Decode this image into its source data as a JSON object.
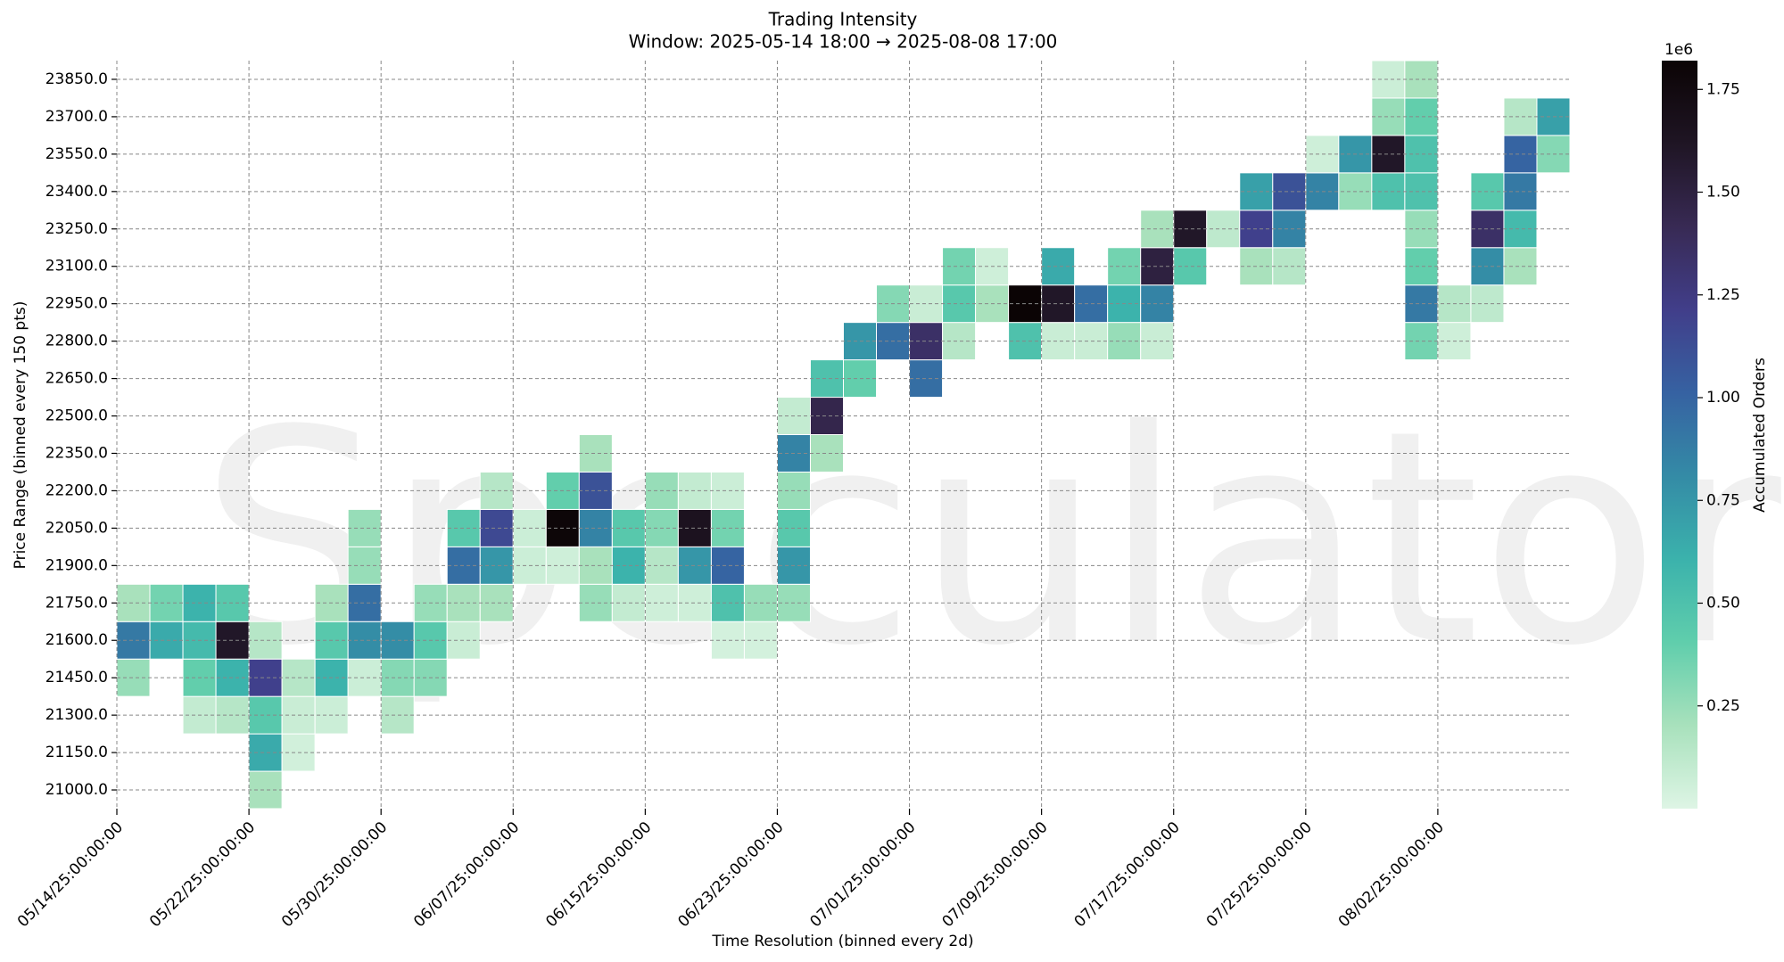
{
  "chart_data": {
    "type": "heatmap",
    "title": "Trading Intensity",
    "subtitle": "Window: 2025-05-14 18:00 → 2025-08-08 17:00",
    "xlabel": "Time Resolution (binned every 2d)",
    "ylabel": "Price Range (binned every 150 pts)",
    "colorbar_label": "Accumulated Orders",
    "colorbar_offset": "1e6",
    "watermark": "Speculator",
    "grid": true,
    "colorscale": [
      "#def5e5",
      "#a8e1bc",
      "#60ceac",
      "#3bb2ac",
      "#348ba6",
      "#3662a2",
      "#413e8a",
      "#382a54",
      "#1f1524",
      "#0b0405"
    ],
    "zlim": [
      0,
      1.82
    ],
    "zticks": [
      0.25,
      {
        "value": 0.5,
        "label": "0.50"
      },
      0.75,
      {
        "value": 1,
        "label": "1.00"
      },
      1.25,
      {
        "value": 1.5,
        "label": "1.50"
      },
      1.75
    ],
    "x": [
      "05/14/25:00:00:00",
      null,
      null,
      null,
      "05/22/25:00:00:00",
      null,
      null,
      null,
      "05/30/25:00:00:00",
      null,
      null,
      null,
      "06/07/25:00:00:00",
      null,
      null,
      null,
      "06/15/25:00:00:00",
      null,
      null,
      null,
      "06/23/25:00:00:00",
      null,
      null,
      null,
      "07/01/25:00:00:00",
      null,
      null,
      null,
      "07/09/25:00:00:00",
      null,
      null,
      null,
      "07/17/25:00:00:00",
      null,
      null,
      null,
      "07/25/25:00:00:00",
      null,
      null,
      null,
      "08/02/25:00:00:00",
      null,
      null,
      null
    ],
    "y": [
      "21000.0",
      "21150.0",
      "21300.0",
      "21450.0",
      "21600.0",
      "21750.0",
      "21900.0",
      "22050.0",
      "22200.0",
      "22350.0",
      "22500.0",
      "22650.0",
      "22800.0",
      "22950.0",
      "23100.0",
      "23250.0",
      "23400.0",
      "23550.0",
      "23700.0",
      "23850.0"
    ],
    "values": [
      [
        null,
        null,
        null,
        null,
        0.2,
        null,
        null,
        null,
        null,
        null,
        null,
        null,
        null,
        null,
        null,
        null,
        null,
        null,
        null,
        null,
        null,
        null,
        null,
        null,
        null,
        null,
        null,
        null,
        null,
        null,
        null,
        null,
        null,
        null,
        null,
        null,
        null,
        null,
        null,
        null,
        null,
        null,
        null,
        null
      ],
      [
        null,
        null,
        null,
        null,
        0.65,
        0.05,
        null,
        null,
        null,
        null,
        null,
        null,
        null,
        null,
        null,
        null,
        null,
        null,
        null,
        null,
        null,
        null,
        null,
        null,
        null,
        null,
        null,
        null,
        null,
        null,
        null,
        null,
        null,
        null,
        null,
        null,
        null,
        null,
        null,
        null,
        null,
        null,
        null,
        null
      ],
      [
        null,
        null,
        0.1,
        0.15,
        0.45,
        0.08,
        0.07,
        null,
        0.15,
        null,
        null,
        null,
        null,
        null,
        null,
        null,
        null,
        null,
        null,
        null,
        null,
        null,
        null,
        null,
        null,
        null,
        null,
        null,
        null,
        null,
        null,
        null,
        null,
        null,
        null,
        null,
        null,
        null,
        null,
        null,
        null,
        null,
        null,
        null
      ],
      [
        0.25,
        null,
        0.4,
        0.6,
        1.2,
        0.15,
        0.6,
        0.07,
        0.3,
        0.3,
        null,
        null,
        null,
        null,
        null,
        null,
        null,
        null,
        null,
        null,
        null,
        null,
        null,
        null,
        null,
        null,
        null,
        null,
        null,
        null,
        null,
        null,
        null,
        null,
        null,
        null,
        null,
        null,
        null,
        null,
        null,
        null,
        null,
        null
      ],
      [
        0.9,
        0.65,
        0.55,
        1.6,
        0.15,
        null,
        0.45,
        0.8,
        0.8,
        0.45,
        0.08,
        null,
        null,
        null,
        null,
        null,
        null,
        null,
        0.04,
        0.04,
        null,
        null,
        null,
        null,
        null,
        null,
        null,
        null,
        null,
        null,
        null,
        null,
        null,
        null,
        null,
        null,
        null,
        null,
        null,
        null,
        null,
        null,
        null,
        null
      ],
      [
        0.2,
        0.35,
        0.6,
        0.45,
        null,
        null,
        0.2,
        0.95,
        null,
        0.25,
        0.2,
        0.2,
        null,
        null,
        0.25,
        0.1,
        0.06,
        0.06,
        0.5,
        0.25,
        0.25,
        null,
        null,
        null,
        null,
        null,
        null,
        null,
        null,
        null,
        null,
        null,
        null,
        null,
        null,
        null,
        null,
        null,
        null,
        null,
        null,
        null,
        null,
        null
      ],
      [
        null,
        null,
        null,
        null,
        null,
        null,
        null,
        0.25,
        null,
        null,
        0.95,
        0.75,
        0.07,
        0.06,
        0.2,
        0.6,
        0.15,
        0.75,
        1.0,
        null,
        0.75,
        null,
        null,
        null,
        null,
        null,
        null,
        null,
        null,
        null,
        null,
        null,
        null,
        null,
        null,
        null,
        null,
        null,
        null,
        null,
        null,
        null,
        null,
        null
      ],
      [
        null,
        null,
        null,
        null,
        null,
        null,
        null,
        0.25,
        null,
        null,
        0.45,
        1.15,
        0.07,
        1.8,
        0.85,
        0.45,
        0.3,
        1.65,
        0.35,
        null,
        0.45,
        null,
        null,
        null,
        null,
        null,
        null,
        null,
        null,
        null,
        null,
        null,
        null,
        null,
        null,
        null,
        null,
        null,
        null,
        null,
        null,
        null,
        null,
        null
      ],
      [
        null,
        null,
        null,
        null,
        null,
        null,
        null,
        null,
        null,
        null,
        null,
        0.15,
        null,
        0.4,
        1.1,
        null,
        0.25,
        0.1,
        0.07,
        null,
        0.25,
        null,
        null,
        null,
        null,
        null,
        null,
        null,
        null,
        null,
        null,
        null,
        null,
        null,
        null,
        null,
        null,
        null,
        null,
        null,
        null,
        null,
        null,
        null
      ],
      [
        null,
        null,
        null,
        null,
        null,
        null,
        null,
        null,
        null,
        null,
        null,
        null,
        null,
        null,
        0.2,
        null,
        null,
        null,
        null,
        null,
        0.85,
        0.2,
        null,
        null,
        null,
        null,
        null,
        null,
        null,
        null,
        null,
        null,
        null,
        null,
        null,
        null,
        null,
        null,
        null,
        null,
        null,
        null,
        null,
        null
      ],
      [
        null,
        null,
        null,
        null,
        null,
        null,
        null,
        null,
        null,
        null,
        null,
        null,
        null,
        null,
        null,
        null,
        null,
        null,
        null,
        null,
        0.1,
        1.45,
        null,
        null,
        null,
        null,
        null,
        null,
        null,
        null,
        null,
        null,
        null,
        null,
        null,
        null,
        null,
        null,
        null,
        null,
        null,
        null,
        null,
        null
      ],
      [
        null,
        null,
        null,
        null,
        null,
        null,
        null,
        null,
        null,
        null,
        null,
        null,
        null,
        null,
        null,
        null,
        null,
        null,
        null,
        null,
        null,
        0.5,
        0.4,
        null,
        0.95,
        null,
        null,
        null,
        null,
        null,
        null,
        null,
        null,
        null,
        null,
        null,
        null,
        null,
        null,
        null,
        null,
        null,
        null,
        null
      ],
      [
        null,
        null,
        null,
        null,
        null,
        null,
        null,
        null,
        null,
        null,
        null,
        null,
        null,
        null,
        null,
        null,
        null,
        null,
        null,
        null,
        null,
        null,
        0.75,
        0.95,
        1.35,
        0.15,
        null,
        0.5,
        0.08,
        0.08,
        0.25,
        0.08,
        null,
        null,
        null,
        null,
        null,
        null,
        null,
        0.35,
        0.06,
        null,
        null,
        null
      ],
      [
        null,
        null,
        null,
        null,
        null,
        null,
        null,
        null,
        null,
        null,
        null,
        null,
        null,
        null,
        null,
        null,
        null,
        null,
        null,
        null,
        null,
        null,
        null,
        0.3,
        0.08,
        0.45,
        0.2,
        1.82,
        1.6,
        0.95,
        0.6,
        0.85,
        null,
        null,
        null,
        null,
        null,
        null,
        null,
        0.9,
        0.15,
        0.12,
        null,
        null
      ],
      [
        null,
        null,
        null,
        null,
        null,
        null,
        null,
        null,
        null,
        null,
        null,
        null,
        null,
        null,
        null,
        null,
        null,
        null,
        null,
        null,
        null,
        null,
        null,
        null,
        null,
        0.35,
        0.06,
        null,
        0.65,
        null,
        0.35,
        1.5,
        0.45,
        null,
        0.2,
        0.15,
        null,
        null,
        null,
        0.4,
        null,
        0.8,
        0.2,
        null
      ],
      [
        null,
        null,
        null,
        null,
        null,
        null,
        null,
        null,
        null,
        null,
        null,
        null,
        null,
        null,
        null,
        null,
        null,
        null,
        null,
        null,
        null,
        null,
        null,
        null,
        null,
        null,
        null,
        null,
        null,
        null,
        null,
        0.2,
        1.6,
        0.12,
        1.2,
        0.85,
        null,
        null,
        null,
        0.25,
        null,
        1.35,
        0.55,
        null
      ],
      [
        null,
        null,
        null,
        null,
        null,
        null,
        null,
        null,
        null,
        null,
        null,
        null,
        null,
        null,
        null,
        null,
        null,
        null,
        null,
        null,
        null,
        null,
        null,
        null,
        null,
        null,
        null,
        null,
        null,
        null,
        null,
        null,
        null,
        null,
        0.7,
        1.1,
        0.85,
        0.25,
        0.5,
        0.5,
        null,
        0.45,
        0.9,
        null
      ],
      [
        null,
        null,
        null,
        null,
        null,
        null,
        null,
        null,
        null,
        null,
        null,
        null,
        null,
        null,
        null,
        null,
        null,
        null,
        null,
        null,
        null,
        null,
        null,
        null,
        null,
        null,
        null,
        null,
        null,
        null,
        null,
        null,
        null,
        null,
        null,
        null,
        0.06,
        0.75,
        1.6,
        0.5,
        null,
        null,
        1.0,
        0.3
      ],
      [
        null,
        null,
        null,
        null,
        null,
        null,
        null,
        null,
        null,
        null,
        null,
        null,
        null,
        null,
        null,
        null,
        null,
        null,
        null,
        null,
        null,
        null,
        null,
        null,
        null,
        null,
        null,
        null,
        null,
        null,
        null,
        null,
        null,
        null,
        null,
        null,
        null,
        null,
        0.25,
        0.4,
        null,
        null,
        0.15,
        0.7
      ],
      [
        null,
        null,
        null,
        null,
        null,
        null,
        null,
        null,
        null,
        null,
        null,
        null,
        null,
        null,
        null,
        null,
        null,
        null,
        null,
        null,
        null,
        null,
        null,
        null,
        null,
        null,
        null,
        null,
        null,
        null,
        null,
        null,
        null,
        null,
        null,
        null,
        null,
        null,
        0.07,
        0.2,
        null,
        null,
        null,
        null
      ]
    ]
  }
}
